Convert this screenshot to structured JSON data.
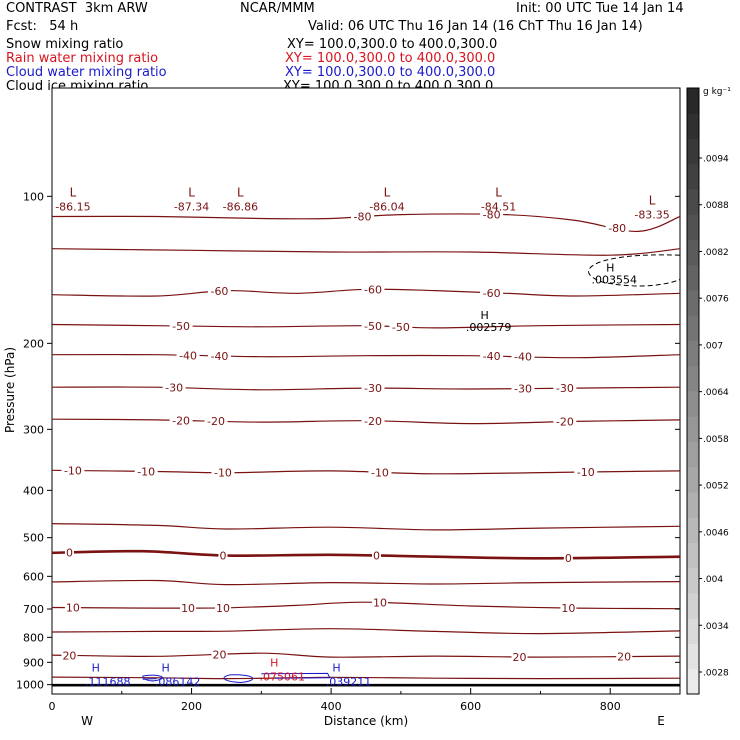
{
  "header": {
    "model": "CONTRAST  3km ARW",
    "center": "NCAR/MMM",
    "init": "Init: 00 UTC Tue 14 Jan 14",
    "fcst": "Fcst:   54 h",
    "valid": "Valid: 06 UTC Thu 16 Jan 14 (16 ChT Thu 16 Jan 14)",
    "fields": [
      {
        "name": "Snow mixing ratio",
        "xy": "XY= 100.0,300.0 to 400.0,300.0",
        "color": "#000000"
      },
      {
        "name": "Rain water mixing ratio",
        "xy": "XY= 100.0,300.0 to 400.0,300.0",
        "color": "#d8141e"
      },
      {
        "name": "Cloud water mixing ratio",
        "xy": "XY= 100.0,300.0 to 400.0,300.0",
        "color": "#1a1acc"
      },
      {
        "name": "Cloud ice mixing ratio",
        "xy": "XY= 100.0,300.0 to 400.0,300.0",
        "color": "#000000"
      }
    ]
  },
  "chart_data": {
    "type": "contour-cross-section",
    "xlabel": "Distance (km)",
    "ylabel": "Pressure (hPa)",
    "xlim": [
      0,
      900
    ],
    "ylim": [
      1045,
      60
    ],
    "yscale": "log",
    "x_ticks": [
      0,
      200,
      400,
      600,
      800
    ],
    "y_ticks": [
      100,
      200,
      300,
      400,
      500,
      600,
      700,
      800,
      900,
      1000
    ],
    "x_end_labels": {
      "left": "W",
      "right": "E"
    },
    "isotherm_color": "#7a1212",
    "isotherms": [
      {
        "value": -80,
        "labels": [
          {
            "text": "-80",
            "x": 445
          },
          {
            "text": "-80",
            "x": 630
          },
          {
            "text": "-80",
            "x": 810
          }
        ],
        "points": [
          [
            0,
            110
          ],
          [
            150,
            110
          ],
          [
            300,
            111
          ],
          [
            400,
            111
          ],
          [
            500,
            109
          ],
          [
            650,
            109
          ],
          [
            750,
            112
          ],
          [
            840,
            118
          ],
          [
            900,
            110
          ]
        ]
      },
      {
        "value": -70,
        "labels": [],
        "points": [
          [
            0,
            128
          ],
          [
            200,
            129
          ],
          [
            400,
            130
          ],
          [
            600,
            130
          ],
          [
            800,
            132
          ],
          [
            900,
            128
          ]
        ]
      },
      {
        "value": -60,
        "labels": [
          {
            "text": "-60",
            "x": 240
          },
          {
            "text": "-60",
            "x": 460
          },
          {
            "text": "-60",
            "x": 630
          }
        ],
        "points": [
          [
            0,
            159
          ],
          [
            150,
            160
          ],
          [
            250,
            156
          ],
          [
            350,
            158
          ],
          [
            450,
            155
          ],
          [
            550,
            156
          ],
          [
            650,
            158
          ],
          [
            750,
            160
          ],
          [
            900,
            158
          ]
        ]
      },
      {
        "value": -50,
        "labels": [
          {
            "text": "-50",
            "x": 185
          },
          {
            "text": "-50",
            "x": 460
          },
          {
            "text": "-50",
            "x": 500
          }
        ],
        "points": [
          [
            0,
            183
          ],
          [
            150,
            184
          ],
          [
            300,
            185
          ],
          [
            450,
            184
          ],
          [
            550,
            186
          ],
          [
            700,
            184
          ],
          [
            900,
            183
          ]
        ]
      },
      {
        "value": -40,
        "labels": [
          {
            "text": "-40",
            "x": 195
          },
          {
            "text": "-40",
            "x": 240
          },
          {
            "text": "-40",
            "x": 630
          },
          {
            "text": "-40",
            "x": 675
          }
        ],
        "points": [
          [
            0,
            211
          ],
          [
            150,
            211
          ],
          [
            300,
            213
          ],
          [
            450,
            212
          ],
          [
            600,
            212
          ],
          [
            750,
            214
          ],
          [
            900,
            211
          ]
        ]
      },
      {
        "value": -30,
        "labels": [
          {
            "text": "-30",
            "x": 175
          },
          {
            "text": "-30",
            "x": 460
          },
          {
            "text": "-30",
            "x": 675
          },
          {
            "text": "-30",
            "x": 735
          }
        ],
        "points": [
          [
            0,
            246
          ],
          [
            150,
            246
          ],
          [
            300,
            249
          ],
          [
            450,
            247
          ],
          [
            600,
            248
          ],
          [
            750,
            247
          ],
          [
            900,
            246
          ]
        ]
      },
      {
        "value": -20,
        "labels": [
          {
            "text": "-20",
            "x": 185
          },
          {
            "text": "-20",
            "x": 235
          },
          {
            "text": "-20",
            "x": 460
          },
          {
            "text": "-20",
            "x": 735
          }
        ],
        "points": [
          [
            0,
            286
          ],
          [
            150,
            287
          ],
          [
            300,
            290
          ],
          [
            450,
            288
          ],
          [
            600,
            292
          ],
          [
            750,
            289
          ],
          [
            900,
            287
          ]
        ]
      },
      {
        "value": -10,
        "labels": [
          {
            "text": "-10",
            "x": 30
          },
          {
            "text": "-10",
            "x": 135
          },
          {
            "text": "-10",
            "x": 245
          },
          {
            "text": "-10",
            "x": 470
          },
          {
            "text": "-10",
            "x": 765
          }
        ],
        "points": [
          [
            0,
            364
          ],
          [
            150,
            366
          ],
          [
            250,
            368
          ],
          [
            400,
            365
          ],
          [
            550,
            370
          ],
          [
            750,
            367
          ],
          [
            900,
            365
          ]
        ]
      },
      {
        "value": -5,
        "labels": [],
        "points": [
          [
            0,
            468
          ],
          [
            150,
            472
          ],
          [
            250,
            480
          ],
          [
            400,
            476
          ],
          [
            550,
            482
          ],
          [
            700,
            478
          ],
          [
            900,
            474
          ]
        ]
      },
      {
        "value": 0,
        "labels": [
          {
            "text": "0",
            "x": 25
          },
          {
            "text": "0",
            "x": 245
          },
          {
            "text": "0",
            "x": 465
          },
          {
            "text": "0",
            "x": 740
          }
        ],
        "points": [
          [
            0,
            537
          ],
          [
            130,
            533
          ],
          [
            250,
            544
          ],
          [
            400,
            542
          ],
          [
            550,
            547
          ],
          [
            700,
            551
          ],
          [
            900,
            547
          ]
        ]
      },
      {
        "value": 5,
        "labels": [],
        "points": [
          [
            0,
            616
          ],
          [
            150,
            612
          ],
          [
            250,
            624
          ],
          [
            400,
            618
          ],
          [
            550,
            622
          ],
          [
            700,
            618
          ],
          [
            900,
            615
          ]
        ]
      },
      {
        "value": 10,
        "labels": [
          {
            "text": "10",
            "x": 30
          },
          {
            "text": "10",
            "x": 195
          },
          {
            "text": "10",
            "x": 245
          },
          {
            "text": "10",
            "x": 470
          },
          {
            "text": "10",
            "x": 740
          }
        ],
        "points": [
          [
            0,
            695
          ],
          [
            150,
            697
          ],
          [
            250,
            696
          ],
          [
            350,
            688
          ],
          [
            450,
            678
          ],
          [
            600,
            690
          ],
          [
            750,
            697
          ],
          [
            900,
            699
          ]
        ]
      },
      {
        "value": 15,
        "labels": [],
        "points": [
          [
            0,
            780
          ],
          [
            150,
            778
          ],
          [
            250,
            777
          ],
          [
            400,
            768
          ],
          [
            550,
            778
          ],
          [
            700,
            786
          ],
          [
            900,
            776
          ]
        ]
      },
      {
        "value": 20,
        "labels": [
          {
            "text": "20",
            "x": 25
          },
          {
            "text": "20",
            "x": 240
          },
          {
            "text": "20",
            "x": 670
          },
          {
            "text": "20",
            "x": 820
          }
        ],
        "points": [
          [
            0,
            870
          ],
          [
            150,
            875
          ],
          [
            300,
            862
          ],
          [
            400,
            878
          ],
          [
            550,
            874
          ],
          [
            700,
            878
          ],
          [
            900,
            874
          ]
        ]
      },
      {
        "value": 25,
        "labels": [],
        "points": [
          [
            0,
            965
          ],
          [
            150,
            968
          ],
          [
            250,
            972
          ],
          [
            400,
            966
          ],
          [
            550,
            970
          ],
          [
            700,
            972
          ],
          [
            900,
            970
          ]
        ]
      }
    ],
    "tropopause_values": [
      {
        "marker": "L",
        "value": "-86.15",
        "x": 30,
        "y": 103
      },
      {
        "marker": "L",
        "value": "-87.34",
        "x": 200,
        "y": 103
      },
      {
        "marker": "L",
        "value": "-86.86",
        "x": 270,
        "y": 103
      },
      {
        "marker": "L",
        "value": "-86.04",
        "x": 480,
        "y": 103
      },
      {
        "marker": "L",
        "value": "-84.51",
        "x": 640,
        "y": 103
      },
      {
        "marker": "L",
        "value": "-83.35",
        "x": 860,
        "y": 107
      }
    ],
    "snow_highs": [
      {
        "marker": "H",
        "value": ".003554",
        "x": 800,
        "y": 148
      },
      {
        "marker": "H",
        "value": ".002579",
        "x": 620,
        "y": 185
      }
    ],
    "cloud_water_highs": [
      {
        "marker": "H",
        "value": ".111688",
        "x": 80,
        "y": 985
      },
      {
        "marker": "H",
        "value": ".086142",
        "x": 180,
        "y": 985
      },
      {
        "marker": "H",
        "value": ".039211",
        "x": 425,
        "y": 985
      }
    ],
    "rain_highs": [
      {
        "marker": "H",
        "value": ".075061",
        "x": 330,
        "y": 962
      }
    ],
    "colorbar": {
      "unit": "g kg⁻¹",
      "ticks": [
        ".0028",
        ".0034",
        ".004",
        ".0046",
        ".0052",
        ".0058",
        ".0064",
        ".007",
        ".0076",
        ".0082",
        ".0088",
        ".0094"
      ]
    }
  }
}
